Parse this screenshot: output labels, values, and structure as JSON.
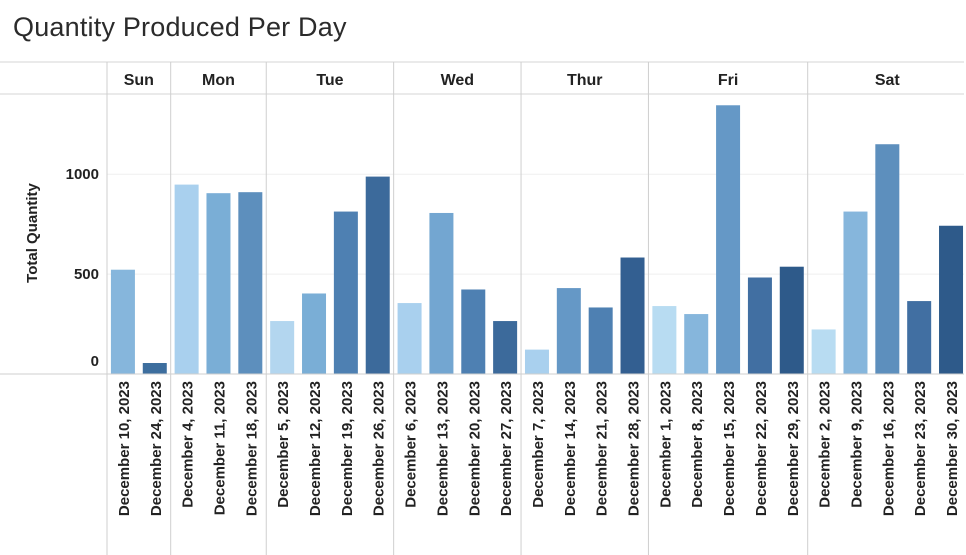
{
  "title": "Quantity Produced Per Day",
  "chart_data": {
    "type": "bar",
    "title": "Quantity Produced Per Day",
    "ylabel": "Total Quantity",
    "xlabel": "",
    "ylim": [
      0,
      1400
    ],
    "yticks": [
      0,
      500,
      1000
    ],
    "ytick_labels": [
      "0",
      "500",
      "1000"
    ],
    "grid": "horizontal",
    "groups": [
      {
        "day": "Sun",
        "bars": [
          {
            "date": "December 10, 2023",
            "value": 522,
            "color": "#86b6dc"
          },
          {
            "date": "December 24, 2023",
            "value": 55,
            "color": "#3d6e9e"
          }
        ]
      },
      {
        "day": "Mon",
        "bars": [
          {
            "date": "December 4, 2023",
            "value": 948,
            "color": "#a9d0ee"
          },
          {
            "date": "December 11, 2023",
            "value": 905,
            "color": "#7aaed6"
          },
          {
            "date": "December 18, 2023",
            "value": 910,
            "color": "#5d8fbd"
          }
        ]
      },
      {
        "day": "Tue",
        "bars": [
          {
            "date": "December 5, 2023",
            "value": 265,
            "color": "#b3d6ef"
          },
          {
            "date": "December 12, 2023",
            "value": 403,
            "color": "#7aaed6"
          },
          {
            "date": "December 19, 2023",
            "value": 813,
            "color": "#4e80b2"
          },
          {
            "date": "December 26, 2023",
            "value": 988,
            "color": "#3c6a9b"
          }
        ]
      },
      {
        "day": "Wed",
        "bars": [
          {
            "date": "December 6, 2023",
            "value": 355,
            "color": "#a9d0ee"
          },
          {
            "date": "December 13, 2023",
            "value": 806,
            "color": "#73a6d1"
          },
          {
            "date": "December 20, 2023",
            "value": 423,
            "color": "#4e80b2"
          },
          {
            "date": "December 27, 2023",
            "value": 265,
            "color": "#3c6a9b"
          }
        ]
      },
      {
        "day": "Thur",
        "bars": [
          {
            "date": "December 7, 2023",
            "value": 122,
            "color": "#a9d0ee"
          },
          {
            "date": "December 14, 2023",
            "value": 430,
            "color": "#6598c6"
          },
          {
            "date": "December 21, 2023",
            "value": 333,
            "color": "#4e80b2"
          },
          {
            "date": "December 28, 2023",
            "value": 583,
            "color": "#335f91"
          }
        ]
      },
      {
        "day": "Fri",
        "bars": [
          {
            "date": "December 1, 2023",
            "value": 340,
            "color": "#b8dcf2"
          },
          {
            "date": "December 8, 2023",
            "value": 300,
            "color": "#86b6dc"
          },
          {
            "date": "December 15, 2023",
            "value": 1345,
            "color": "#6598c6"
          },
          {
            "date": "December 22, 2023",
            "value": 483,
            "color": "#416fa2"
          },
          {
            "date": "December 29, 2023",
            "value": 537,
            "color": "#2e5a8a"
          }
        ]
      },
      {
        "day": "Sat",
        "bars": [
          {
            "date": "December 2, 2023",
            "value": 223,
            "color": "#b8dcf2"
          },
          {
            "date": "December 9, 2023",
            "value": 813,
            "color": "#86b6dc"
          },
          {
            "date": "December 16, 2023",
            "value": 1150,
            "color": "#5d8fbd"
          },
          {
            "date": "December 23, 2023",
            "value": 365,
            "color": "#416fa2"
          },
          {
            "date": "December 30, 2023",
            "value": 742,
            "color": "#2e5a8a"
          }
        ]
      }
    ]
  }
}
